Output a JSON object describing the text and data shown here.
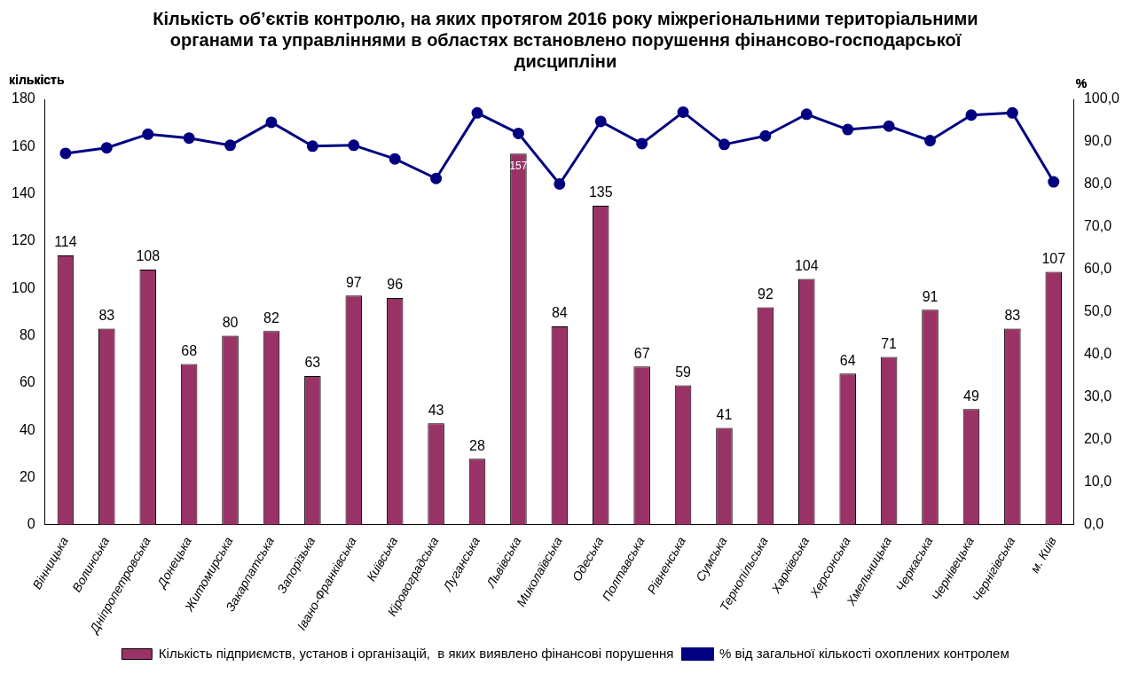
{
  "chart_data": {
    "type": "bar",
    "title": "Кількість об’єктів контролю, на яких протягом 2016 року міжрегіональними територіальними органами та управліннями в областях встановлено порушення фінансово-господарської дисципліни",
    "ylabel": "кількість",
    "y2label": "%",
    "categories": [
      "Вінницька",
      "Волинська",
      "Дніпропетровська",
      "Донецька",
      "Житомирська",
      "Закарпатська",
      "Запорізька",
      "Івано-Франківська",
      "Київська",
      "Кіровоградська",
      "Луганська",
      "Львівська",
      "Миколаївська",
      "Одеська",
      "Полтавська",
      "Рівненська",
      "Сумська",
      "Тернопільська",
      "Харківська",
      "Херсонська",
      "Хмельницька",
      "Черкаська",
      "Чернівецька",
      "Чернігівська",
      "м. Київ"
    ],
    "series": [
      {
        "name": "Кількість підприємств, установ і організацій,  в яких виявлено фінансові порушення",
        "color": "#993366",
        "values": [
          114,
          83,
          108,
          68,
          80,
          82,
          63,
          97,
          96,
          43,
          28,
          157,
          84,
          135,
          67,
          59,
          41,
          92,
          104,
          64,
          71,
          91,
          49,
          83,
          107
        ],
        "value_labels": [
          "114",
          "83",
          "108",
          "68",
          "80",
          "82",
          "63",
          "97",
          "96",
          "43",
          "28",
          "157",
          "84",
          "135",
          "67",
          "59",
          "41",
          "92",
          "104",
          "64",
          "71",
          "91",
          "49",
          "83",
          "107"
        ]
      },
      {
        "name": "% від загальної кількості охоплених контролем",
        "type": "line",
        "axis": "y2",
        "color": "#000080",
        "marker": "circle",
        "values": [
          87.3,
          88.6,
          91.8,
          90.9,
          89.2,
          94.6,
          89.0,
          89.2,
          86.0,
          81.4,
          96.8,
          92.0,
          80.1,
          94.8,
          89.6,
          97.0,
          89.4,
          91.4,
          96.5,
          92.9,
          93.7,
          90.3,
          96.3,
          96.8,
          80.6
        ]
      }
    ],
    "ylim": [
      0,
      180
    ],
    "yticks": [
      0,
      20,
      40,
      60,
      80,
      100,
      120,
      140,
      160,
      180
    ],
    "y2lim": [
      0,
      100
    ],
    "y2ticks": [
      {
        "value": 0,
        "label": "0,0"
      },
      {
        "value": 10,
        "label": "10,0"
      },
      {
        "value": 20,
        "label": "20,0"
      },
      {
        "value": 30,
        "label": "30,0"
      },
      {
        "value": 40,
        "label": "40,0"
      },
      {
        "value": 50,
        "label": "50,0"
      },
      {
        "value": 60,
        "label": "60,0"
      },
      {
        "value": 70,
        "label": "70,0"
      },
      {
        "value": 80,
        "label": "80,0"
      },
      {
        "value": 90,
        "label": "90,0"
      },
      {
        "value": 100,
        "label": "100,0"
      }
    ],
    "grid": false,
    "legend": "bottom"
  }
}
